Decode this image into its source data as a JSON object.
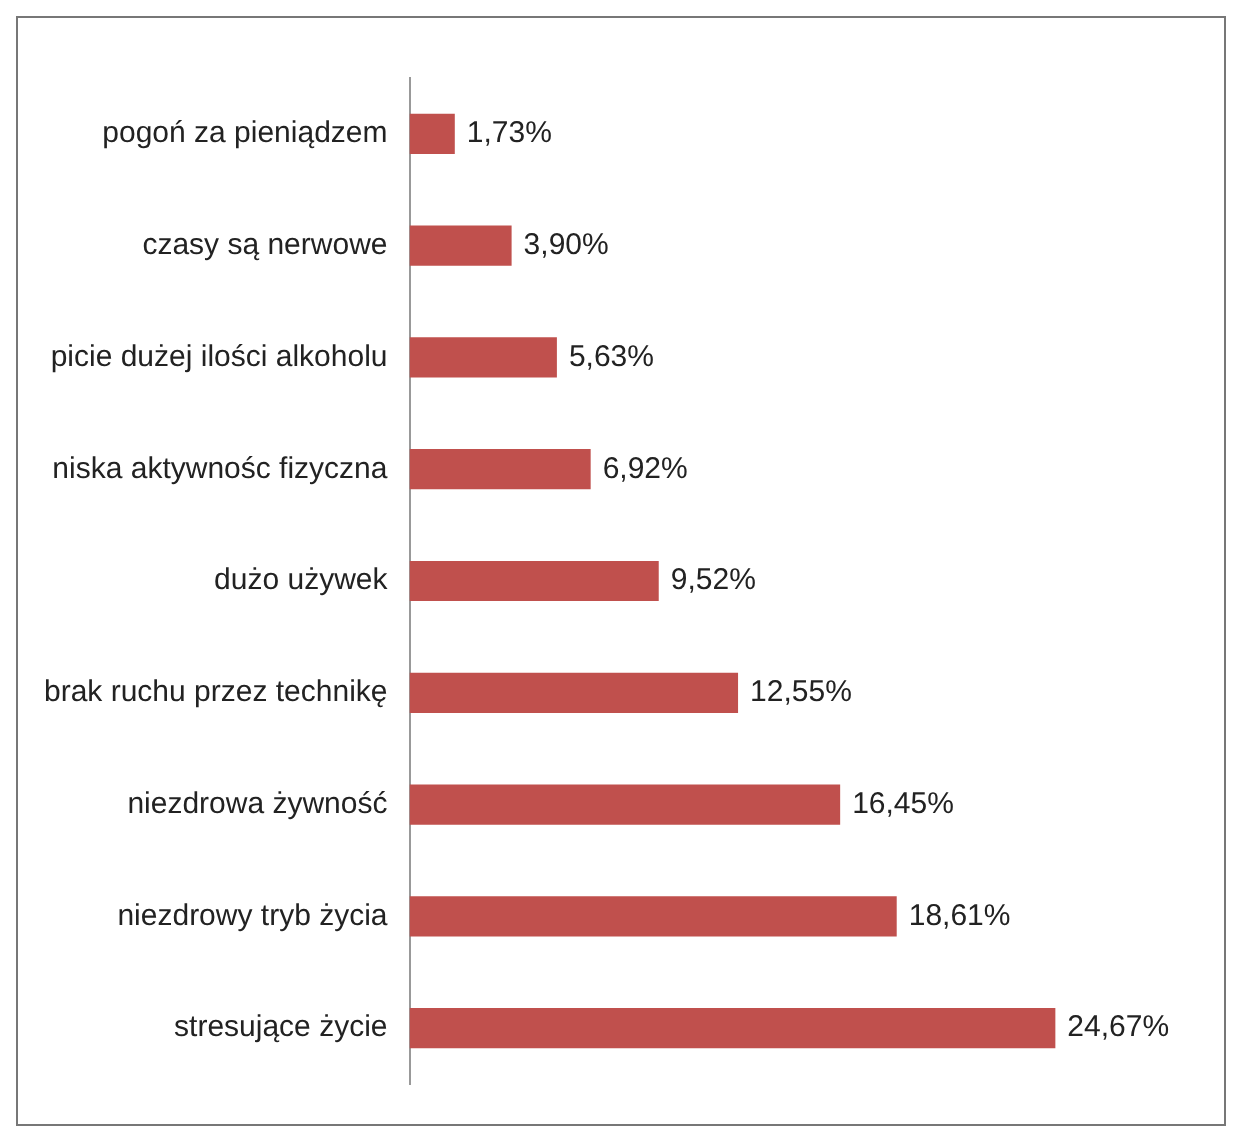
{
  "chart_data": {
    "type": "bar",
    "orientation": "horizontal",
    "categories": [
      "pogoń za pieniądzem",
      "czasy są nerwowe",
      "picie dużej ilości alkoholu",
      "niska aktywnośc fizyczna",
      "dużo używek",
      "brak ruchu przez technikę",
      "niezdrowa żywność",
      "niezdrowy tryb życia",
      "stresujące życie"
    ],
    "values": [
      1.73,
      3.9,
      5.63,
      6.92,
      9.52,
      12.55,
      16.45,
      18.61,
      24.67
    ],
    "value_labels": [
      "1,73%",
      "3,90%",
      "5,63%",
      "6,92%",
      "9,52%",
      "12,55%",
      "16,45%",
      "18,61%",
      "24,67%"
    ],
    "color": "#c0504d"
  }
}
